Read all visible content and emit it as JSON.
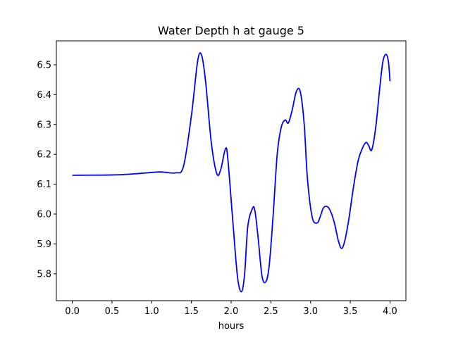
{
  "chart_data": {
    "type": "line",
    "title": "Water Depth h at gauge 5",
    "xlabel": "hours",
    "ylabel": "",
    "xlim": [
      -0.2,
      4.2
    ],
    "ylim": [
      5.71,
      6.58
    ],
    "xticks": [
      0.0,
      0.5,
      1.0,
      1.5,
      2.0,
      2.5,
      3.0,
      3.5,
      4.0
    ],
    "xtick_labels": [
      "0.0",
      "0.5",
      "1.0",
      "1.5",
      "2.0",
      "2.5",
      "3.0",
      "3.5",
      "4.0"
    ],
    "yticks": [
      5.8,
      5.9,
      6.0,
      6.1,
      6.2,
      6.3,
      6.4,
      6.5
    ],
    "ytick_labels": [
      "5.8",
      "5.9",
      "6.0",
      "6.1",
      "6.2",
      "6.3",
      "6.4",
      "6.5"
    ],
    "grid": false,
    "series": [
      {
        "color": "#0000ff",
        "x": [
          0.0,
          0.5,
          0.8,
          1.1,
          1.3,
          1.4,
          1.5,
          1.58,
          1.63,
          1.68,
          1.75,
          1.82,
          1.87,
          1.93,
          1.96,
          2.02,
          2.08,
          2.13,
          2.17,
          2.21,
          2.27,
          2.3,
          2.34,
          2.39,
          2.44,
          2.48,
          2.53,
          2.58,
          2.63,
          2.68,
          2.72,
          2.77,
          2.82,
          2.87,
          2.92,
          2.96,
          3.02,
          3.08,
          3.12,
          3.16,
          3.21,
          3.25,
          3.3,
          3.35,
          3.39,
          3.43,
          3.48,
          3.54,
          3.6,
          3.66,
          3.7,
          3.73,
          3.77,
          3.82,
          3.87,
          3.91,
          3.95,
          3.98,
          4.0
        ],
        "y": [
          6.13,
          6.131,
          6.135,
          6.141,
          6.138,
          6.16,
          6.33,
          6.515,
          6.53,
          6.44,
          6.24,
          6.135,
          6.15,
          6.22,
          6.18,
          5.98,
          5.79,
          5.74,
          5.8,
          5.96,
          6.02,
          6.01,
          5.92,
          5.79,
          5.775,
          5.83,
          6.0,
          6.2,
          6.29,
          6.315,
          6.305,
          6.35,
          6.41,
          6.41,
          6.3,
          6.12,
          5.99,
          5.97,
          5.99,
          6.02,
          6.025,
          6.01,
          5.97,
          5.91,
          5.885,
          5.91,
          5.98,
          6.09,
          6.18,
          6.225,
          6.24,
          6.23,
          6.215,
          6.29,
          6.42,
          6.51,
          6.535,
          6.51,
          6.445
        ]
      }
    ]
  }
}
